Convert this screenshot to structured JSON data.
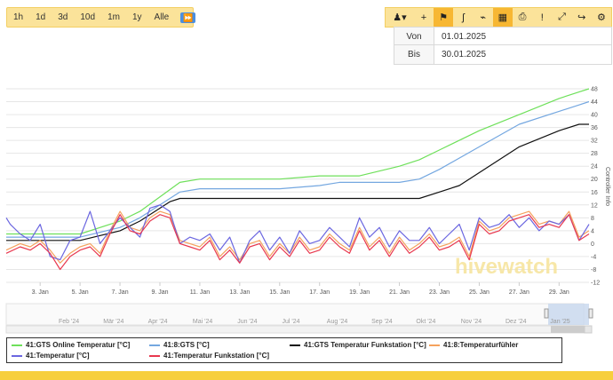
{
  "range_buttons": [
    "1h",
    "1d",
    "3d",
    "10d",
    "1m",
    "1y",
    "Alle"
  ],
  "play_glyph": "⏩",
  "toolbar": [
    {
      "name": "pan-tool-icon",
      "glyph": "♟▾",
      "active": false,
      "wide": true
    },
    {
      "name": "plus-icon",
      "glyph": "+",
      "active": false
    },
    {
      "name": "flag-icon",
      "glyph": "⚑",
      "active": true
    },
    {
      "name": "line-tool-icon",
      "glyph": "ʃ",
      "active": false
    },
    {
      "name": "measure-icon",
      "glyph": "⌁",
      "active": false
    },
    {
      "name": "table-icon",
      "glyph": "▦",
      "active": true
    },
    {
      "name": "print-icon",
      "glyph": "⎙",
      "active": false
    },
    {
      "name": "alert-icon",
      "glyph": "!",
      "active": false
    },
    {
      "name": "fullscreen-icon",
      "glyph": "⤢",
      "active": false
    },
    {
      "name": "share-icon",
      "glyph": "↪",
      "active": false
    },
    {
      "name": "gear-icon",
      "glyph": "⚙",
      "active": false
    }
  ],
  "von": {
    "label": "Von",
    "value": "01.01.2025"
  },
  "bis": {
    "label": "Bis",
    "value": "30.01.2025"
  },
  "yaxis_title": "Controller Info",
  "watermark": "hivewatch",
  "colors": {
    "green": "#6ee05a",
    "blue": "#74a7e0",
    "black": "#111111",
    "orange": "#f5a25d",
    "purple": "#6b66e0",
    "red": "#e8384f",
    "accent": "#fbe39a"
  },
  "navigator_labels": [
    "Feb '24",
    "Mär '24",
    "Apr '24",
    "Mai '24",
    "Jun '24",
    "Jul '24",
    "Aug '24",
    "Sep '24",
    "Okt '24",
    "Nov '24",
    "Dez '24",
    "Jan '25"
  ],
  "legend": [
    {
      "label": "41:GTS Online Temperatur [°C]",
      "color": "#6ee05a"
    },
    {
      "label": "41:8:GTS [°C]",
      "color": "#74a7e0"
    },
    {
      "label": "41:GTS Temperatur Funkstation [°C]",
      "color": "#111111"
    },
    {
      "label": "41:8:Temperaturfühler",
      "color": "#f5a25d"
    },
    {
      "label": "41:Temperatur [°C]",
      "color": "#6b66e0"
    },
    {
      "label": "41:Temperatur Funkstation [°C]",
      "color": "#e8384f"
    }
  ],
  "chart_data": {
    "type": "line",
    "x_tick_labels": [
      "3. Jan",
      "5. Jan",
      "7. Jan",
      "9. Jan",
      "11. Jan",
      "13. Jan",
      "15. Jan",
      "17. Jan",
      "19. Jan",
      "21. Jan",
      "23. Jan",
      "25. Jan",
      "27. Jan",
      "29. Jan"
    ],
    "y_tick_labels": [
      "-12",
      "-8",
      "-4",
      "0",
      "4",
      "8",
      "12",
      "16",
      "20",
      "24",
      "28",
      "32",
      "36",
      "40",
      "44",
      "48"
    ],
    "ylim": [
      -12,
      48
    ],
    "xlim": [
      1.3,
      30.5
    ],
    "ylabel": "Controller Info",
    "series": [
      {
        "name": "41:GTS Online Temperatur [°C]",
        "color": "#6ee05a",
        "x": [
          1.3,
          3,
          5,
          7,
          8,
          10,
          11,
          13,
          15,
          17,
          19,
          21,
          22,
          23,
          25,
          27,
          29,
          30,
          30.5
        ],
        "y": [
          3,
          3,
          3,
          7,
          10,
          19,
          20,
          20,
          20,
          21,
          21,
          24,
          26,
          29,
          35,
          40,
          45,
          47,
          48
        ]
      },
      {
        "name": "41:8:GTS [°C]",
        "color": "#74a7e0",
        "x": [
          1.3,
          3,
          5,
          7,
          8,
          10,
          11,
          13,
          15,
          17,
          18,
          19,
          21,
          22,
          23,
          25,
          27,
          29,
          30,
          30.5
        ],
        "y": [
          2,
          2,
          2,
          5,
          8,
          16,
          17,
          17,
          17,
          18,
          19,
          19,
          19,
          20,
          23,
          30,
          37,
          41,
          43,
          44
        ]
      },
      {
        "name": "41:GTS Temperatur Funkstation [°C]",
        "color": "#111111",
        "x": [
          1.3,
          3,
          5,
          7,
          8,
          9.5,
          10,
          11,
          13,
          15,
          17,
          19,
          21,
          22,
          23,
          24,
          25,
          27,
          29,
          30,
          30.5
        ],
        "y": [
          1,
          1,
          1,
          4,
          7,
          13,
          14,
          14,
          14,
          14,
          14,
          14,
          14,
          14,
          16,
          18,
          22,
          30,
          35,
          37,
          37
        ]
      },
      {
        "name": "41:8:Temperaturfühler",
        "color": "#f5a25d",
        "x": [
          1.3,
          2,
          2.5,
          3,
          3.5,
          4,
          4.5,
          5,
          5.5,
          6,
          6.5,
          7,
          7.5,
          8,
          8.5,
          9,
          9.5,
          10,
          10.5,
          11,
          11.5,
          12,
          12.5,
          13,
          13.5,
          14,
          14.5,
          15,
          15.5,
          16,
          16.5,
          17,
          17.5,
          18,
          18.5,
          19,
          19.5,
          20,
          20.5,
          21,
          21.5,
          22,
          22.5,
          23,
          23.5,
          24,
          24.5,
          25,
          25.5,
          26,
          26.5,
          27,
          27.5,
          28,
          28.5,
          29,
          29.5,
          30,
          30.5
        ],
        "y": [
          -2,
          0,
          -1,
          1,
          -2,
          -6,
          -3,
          -1,
          0,
          -3,
          4,
          10,
          5,
          4,
          8,
          10,
          9,
          1,
          0,
          -1,
          2,
          -4,
          -1,
          -5,
          0,
          1,
          -4,
          0,
          -3,
          2,
          -2,
          -1,
          3,
          0,
          -2,
          5,
          -1,
          2,
          -3,
          2,
          -2,
          0,
          3,
          -1,
          0,
          2,
          -4,
          7,
          4,
          5,
          8,
          9,
          10,
          6,
          7,
          6,
          10,
          2,
          4
        ]
      },
      {
        "name": "41:Temperatur [°C]",
        "color": "#6b66e0",
        "x": [
          1.3,
          1.5,
          2,
          2.5,
          3,
          3.5,
          4,
          4.5,
          5,
          5.5,
          6,
          6.5,
          7,
          7.5,
          8,
          8.5,
          9,
          9.5,
          10,
          10.5,
          11,
          11.5,
          12,
          12.5,
          13,
          13.5,
          14,
          14.5,
          15,
          15.5,
          16,
          16.5,
          17,
          17.5,
          18,
          18.5,
          19,
          19.5,
          20,
          20.5,
          21,
          21.5,
          22,
          22.5,
          23,
          23.5,
          24,
          24.5,
          25,
          25.5,
          26,
          26.5,
          27,
          27.5,
          28,
          28.5,
          29,
          29.5,
          30,
          30.5
        ],
        "y": [
          8,
          6,
          3,
          1,
          6,
          -4,
          -5,
          1,
          2,
          10,
          0,
          4,
          8,
          5,
          2,
          11,
          12,
          10,
          0,
          2,
          1,
          3,
          -2,
          2,
          -6,
          1,
          4,
          -2,
          2,
          -3,
          4,
          0,
          1,
          5,
          2,
          -1,
          8,
          2,
          5,
          -1,
          4,
          1,
          1,
          5,
          0,
          3,
          6,
          -2,
          8,
          5,
          6,
          9,
          5,
          8,
          4,
          7,
          6,
          9,
          1,
          6
        ]
      },
      {
        "name": "41:Temperatur Funkstation [°C]",
        "color": "#e8384f",
        "x": [
          1.3,
          2,
          2.5,
          3,
          3.5,
          4,
          4.5,
          5,
          5.5,
          6,
          6.5,
          7,
          7.5,
          8,
          8.5,
          9,
          9.5,
          10,
          10.5,
          11,
          11.5,
          12,
          12.5,
          13,
          13.5,
          14,
          14.5,
          15,
          15.5,
          16,
          16.5,
          17,
          17.5,
          18,
          18.5,
          19,
          19.5,
          20,
          20.5,
          21,
          21.5,
          22,
          22.5,
          23,
          23.5,
          24,
          24.5,
          25,
          25.5,
          26,
          26.5,
          27,
          27.5,
          28,
          28.5,
          29,
          29.5,
          30,
          30.5
        ],
        "y": [
          -3,
          -1,
          -2,
          0,
          -3,
          -8,
          -4,
          -2,
          -1,
          -4,
          3,
          9,
          4,
          3,
          7,
          9,
          8,
          0,
          -1,
          -2,
          1,
          -5,
          -2,
          -6,
          -1,
          0,
          -5,
          -1,
          -4,
          1,
          -3,
          -2,
          2,
          -1,
          -3,
          4,
          -2,
          1,
          -4,
          1,
          -3,
          -1,
          2,
          -2,
          -1,
          1,
          -5,
          6,
          3,
          4,
          7,
          8,
          9,
          5,
          6,
          5,
          9,
          1,
          3
        ]
      }
    ]
  }
}
